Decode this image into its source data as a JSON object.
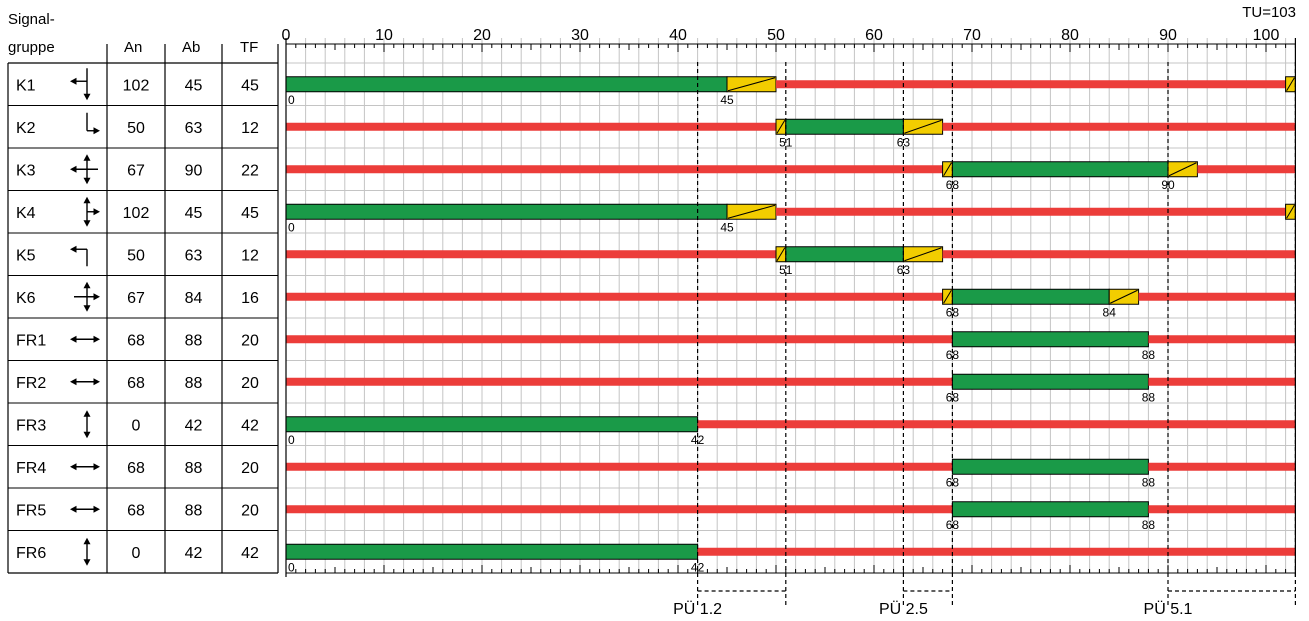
{
  "cycle": {
    "label": "TU=103",
    "length": 103
  },
  "header": {
    "signal_line1": "Signal-",
    "signal_line2": "gruppe",
    "an": "An",
    "ab": "Ab",
    "tf": "TF"
  },
  "axis": {
    "ticks": [
      "0",
      "10",
      "20",
      "30",
      "40",
      "50",
      "60",
      "70",
      "80",
      "90",
      "100"
    ]
  },
  "colors": {
    "green": "#1a9a48",
    "amber": "#f2cd00",
    "red": "#ec3d3a",
    "grid": "#c4c4c4"
  },
  "signals": [
    {
      "name": "K1",
      "icon": "arrow-left-down-icon",
      "an": "102",
      "ab": "45",
      "tf": "45",
      "phases": [
        {
          "c": "green",
          "s": 0,
          "e": 45
        },
        {
          "c": "amber",
          "s": 45,
          "e": 50
        },
        {
          "c": "red",
          "s": 50,
          "e": 102
        },
        {
          "c": "amber",
          "s": 102,
          "e": 103
        }
      ],
      "labels": [
        {
          "text": "0",
          "at": 0
        },
        {
          "text": "45",
          "at": 45
        }
      ]
    },
    {
      "name": "K2",
      "icon": "arrow-down-right-icon",
      "an": "50",
      "ab": "63",
      "tf": "12",
      "phases": [
        {
          "c": "red",
          "s": 0,
          "e": 50
        },
        {
          "c": "amber",
          "s": 50,
          "e": 51
        },
        {
          "c": "green",
          "s": 51,
          "e": 63
        },
        {
          "c": "amber",
          "s": 63,
          "e": 67
        },
        {
          "c": "red",
          "s": 67,
          "e": 103
        }
      ],
      "labels": [
        {
          "text": "51",
          "at": 51
        },
        {
          "text": "63",
          "at": 63
        }
      ]
    },
    {
      "name": "K3",
      "icon": "cross-arrows-icon",
      "an": "67",
      "ab": "90",
      "tf": "22",
      "phases": [
        {
          "c": "red",
          "s": 0,
          "e": 67
        },
        {
          "c": "amber",
          "s": 67,
          "e": 68
        },
        {
          "c": "green",
          "s": 68,
          "e": 90
        },
        {
          "c": "amber",
          "s": 90,
          "e": 93
        },
        {
          "c": "red",
          "s": 93,
          "e": 103
        }
      ],
      "labels": [
        {
          "text": "68",
          "at": 68
        },
        {
          "text": "90",
          "at": 90
        }
      ]
    },
    {
      "name": "K4",
      "icon": "arrow-up-right-down-icon",
      "an": "102",
      "ab": "45",
      "tf": "45",
      "phases": [
        {
          "c": "green",
          "s": 0,
          "e": 45
        },
        {
          "c": "amber",
          "s": 45,
          "e": 50
        },
        {
          "c": "red",
          "s": 50,
          "e": 102
        },
        {
          "c": "amber",
          "s": 102,
          "e": 103
        }
      ],
      "labels": [
        {
          "text": "0",
          "at": 0
        },
        {
          "text": "45",
          "at": 45
        }
      ]
    },
    {
      "name": "K5",
      "icon": "arrow-up-left-icon",
      "an": "50",
      "ab": "63",
      "tf": "12",
      "phases": [
        {
          "c": "red",
          "s": 0,
          "e": 50
        },
        {
          "c": "amber",
          "s": 50,
          "e": 51
        },
        {
          "c": "green",
          "s": 51,
          "e": 63
        },
        {
          "c": "amber",
          "s": 63,
          "e": 67
        },
        {
          "c": "red",
          "s": 67,
          "e": 103
        }
      ],
      "labels": [
        {
          "text": "51",
          "at": 51
        },
        {
          "text": "63",
          "at": 63
        }
      ]
    },
    {
      "name": "K6",
      "icon": "cross-arrows-right-icon",
      "an": "67",
      "ab": "84",
      "tf": "16",
      "phases": [
        {
          "c": "red",
          "s": 0,
          "e": 67
        },
        {
          "c": "amber",
          "s": 67,
          "e": 68
        },
        {
          "c": "green",
          "s": 68,
          "e": 84
        },
        {
          "c": "amber",
          "s": 84,
          "e": 87
        },
        {
          "c": "red",
          "s": 87,
          "e": 103
        }
      ],
      "labels": [
        {
          "text": "68",
          "at": 68
        },
        {
          "text": "84",
          "at": 84
        }
      ]
    },
    {
      "name": "FR1",
      "icon": "double-arrow-horizontal-icon",
      "an": "68",
      "ab": "88",
      "tf": "20",
      "phases": [
        {
          "c": "red",
          "s": 0,
          "e": 68
        },
        {
          "c": "green",
          "s": 68,
          "e": 88
        },
        {
          "c": "red",
          "s": 88,
          "e": 103
        }
      ],
      "labels": [
        {
          "text": "68",
          "at": 68
        },
        {
          "text": "88",
          "at": 88
        }
      ]
    },
    {
      "name": "FR2",
      "icon": "double-arrow-horizontal-icon",
      "an": "68",
      "ab": "88",
      "tf": "20",
      "phases": [
        {
          "c": "red",
          "s": 0,
          "e": 68
        },
        {
          "c": "green",
          "s": 68,
          "e": 88
        },
        {
          "c": "red",
          "s": 88,
          "e": 103
        }
      ],
      "labels": [
        {
          "text": "68",
          "at": 68
        },
        {
          "text": "88",
          "at": 88
        }
      ]
    },
    {
      "name": "FR3",
      "icon": "double-arrow-vertical-icon",
      "an": "0",
      "ab": "42",
      "tf": "42",
      "phases": [
        {
          "c": "green",
          "s": 0,
          "e": 42
        },
        {
          "c": "red",
          "s": 42,
          "e": 103
        }
      ],
      "labels": [
        {
          "text": "0",
          "at": 0
        },
        {
          "text": "42",
          "at": 42
        }
      ]
    },
    {
      "name": "FR4",
      "icon": "double-arrow-horizontal-icon",
      "an": "68",
      "ab": "88",
      "tf": "20",
      "phases": [
        {
          "c": "red",
          "s": 0,
          "e": 68
        },
        {
          "c": "green",
          "s": 68,
          "e": 88
        },
        {
          "c": "red",
          "s": 88,
          "e": 103
        }
      ],
      "labels": [
        {
          "text": "68",
          "at": 68
        },
        {
          "text": "88",
          "at": 88
        }
      ]
    },
    {
      "name": "FR5",
      "icon": "double-arrow-horizontal-icon",
      "an": "68",
      "ab": "88",
      "tf": "20",
      "phases": [
        {
          "c": "red",
          "s": 0,
          "e": 68
        },
        {
          "c": "green",
          "s": 68,
          "e": 88
        },
        {
          "c": "red",
          "s": 88,
          "e": 103
        }
      ],
      "labels": [
        {
          "text": "68",
          "at": 68
        },
        {
          "text": "88",
          "at": 88
        }
      ]
    },
    {
      "name": "FR6",
      "icon": "double-arrow-vertical-icon",
      "an": "0",
      "ab": "42",
      "tf": "42",
      "phases": [
        {
          "c": "green",
          "s": 0,
          "e": 42
        },
        {
          "c": "red",
          "s": 42,
          "e": 103
        }
      ],
      "labels": [
        {
          "text": "0",
          "at": 0
        },
        {
          "text": "42",
          "at": 42
        }
      ]
    }
  ],
  "transitions": [
    {
      "label": "PÜ 1.2",
      "start": 42,
      "end": 51
    },
    {
      "label": "PÜ 2.5",
      "start": 63,
      "end": 68
    },
    {
      "label": "PÜ 5.1",
      "start": 90,
      "end": 103
    }
  ]
}
